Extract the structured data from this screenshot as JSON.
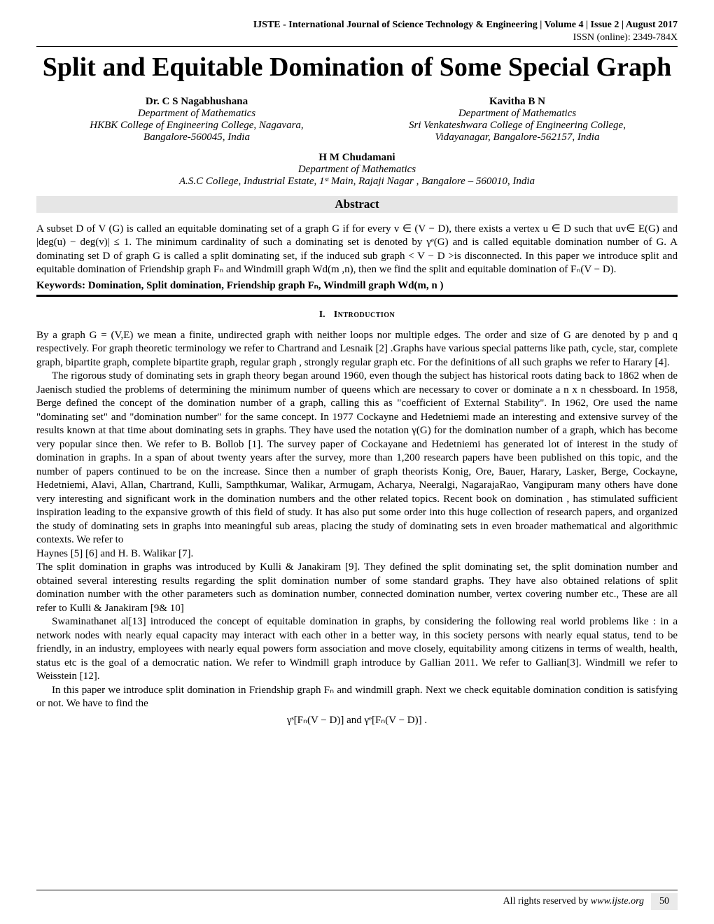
{
  "header": {
    "journal": "IJSTE - International Journal of Science Technology & Engineering | Volume 4 | Issue 2 | August 2017",
    "issn": "ISSN (online): 2349-784X"
  },
  "title": "Split and Equitable Domination of Some Special Graph",
  "authors": {
    "left": {
      "name": "Dr. C S Nagabhushana",
      "dept": "Department of Mathematics",
      "affil1": "HKBK College of Engineering College, Nagavara,",
      "affil2": "Bangalore-560045, India"
    },
    "right": {
      "name": "Kavitha B N",
      "dept": "Department of Mathematics",
      "affil1": "Sri Venkateshwara College of Engineering College,",
      "affil2": "Vidayanagar, Bangalore-562157, India"
    },
    "center": {
      "name": "H M Chudamani",
      "dept": "Department of Mathematics",
      "affil": "A.S.C College, Industrial Estate, 1ˢᵗ Main, Rajaji Nagar , Bangalore – 560010, India"
    }
  },
  "abstract": {
    "heading": "Abstract",
    "text": "A subset D of V (G) is called an equitable dominating set of a graph G if for every v ∈ (V − D), there exists a vertex u ∈ D such that uv∈ E(G) and |deg(u) − deg(v)| ≤ 1. The minimum cardinality of such a dominating set is denoted by γᵉ(G) and is called equitable domination number of G. A dominating set D of graph G is called a split dominating set, if the induced sub graph < V − D >is disconnected. In this paper we introduce split and equitable domination of Friendship graph Fₙ and Windmill graph Wd(m ,n), then we find the split and equitable domination of Fₙ(V − D)."
  },
  "keywords": {
    "label": "Keywords: ",
    "text": "Domination, Split domination, Friendship graph Fₙ, Windmill graph Wd(m, n )"
  },
  "section1": {
    "num": "I.",
    "title": "Introduction"
  },
  "body": {
    "p1": "By a graph G = (V,E) we mean a finite, undirected graph with neither loops nor multiple edges. The order and size of G are denoted by p and q respectively. For graph theoretic terminology we refer to Chartrand and Lesnaik [2] .Graphs have various special patterns like path, cycle, star, complete graph, bipartite graph, complete bipartite graph, regular graph , strongly regular graph etc. For the definitions of all such graphs we refer to Harary [4].",
    "p2": "The rigorous study of dominating sets in graph theory began around 1960, even though the subject has historical roots dating back to 1862 when de Jaenisch studied the problems of determining the minimum number of queens which are necessary to cover or dominate a n x n chessboard. In 1958, Berge defined the concept of the domination number of a graph, calling this as \"coefficient of External Stability\". In 1962, Ore used the name \"dominating set\" and \"domination number\" for the same concept. In 1977 Cockayne and Hedetniemi made an interesting and extensive survey of the results known at that time about dominating sets in graphs.  They have used the notation γ(G) for the domination number of a graph, which has become very popular since then. We refer to B. Bollob [1]. The survey paper of Cockayane and Hedetniemi has generated lot of interest in the study of domination in graphs. In a span of about twenty years after the survey, more than 1,200 research papers have been published on this topic, and the number of papers continued to be on the increase. Since then a number of graph theorists Konig, Ore, Bauer, Harary, Lasker, Berge, Cockayne, Hedetniemi, Alavi, Allan, Chartrand, Kulli, Sampthkumar, Walikar, Armugam, Acharya, Neeralgi, NagarajaRao, Vangipuram many others have done very interesting and significant work in the domination numbers and the other related topics. Recent book on domination , has stimulated sufficient inspiration leading to the expansive growth of this field of study. It has also put some order into this huge collection of research papers, and organized the study of dominating sets in graphs into meaningful sub areas, placing the study of dominating sets in even broader mathematical and algorithmic contexts. We refer to",
    "p3": "Haynes [5] [6] and H. B. Walikar [7].",
    "p4": "The split domination in graphs was introduced by Kulli & Janakiram [9]. They defined the split dominating set, the split domination number and obtained several interesting results regarding the split domination number of some standard graphs. They have also obtained relations of split domination number with the other parameters such as domination number, connected domination number, vertex covering number etc., These are all refer to Kulli & Janakiram [9& 10]",
    "p5": "Swaminathanet al[13]  introduced the concept of equitable domination in graphs, by considering the following real world problems like : in a network nodes with nearly equal capacity may interact with each other in a better way, in this society persons with nearly equal status, tend to be friendly, in an industry, employees with nearly equal powers form association and move closely, equitability among citizens in terms of wealth, health, status etc is the goal of a democratic nation. We refer to Windmill graph introduce by Gallian 2011. We refer to Gallian[3]. Windmill we refer to   Weisstein [12].",
    "p6": "In this paper we introduce split domination in Friendship graph Fₙ and windmill graph. Next we check equitable domination condition is satisfying or not. We have to find the",
    "eq": "γˢ[Fₙ(V − D)]  and γᵉ[Fₙ(V − D)] ."
  },
  "footer": {
    "rights": "All rights reserved by ",
    "site": "www.ijste.org",
    "page": "50"
  }
}
